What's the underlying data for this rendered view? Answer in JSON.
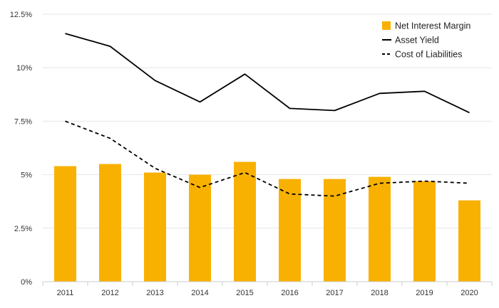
{
  "chart_data": {
    "type": "bar",
    "categories": [
      "2011",
      "2012",
      "2013",
      "2014",
      "2015",
      "2016",
      "2017",
      "2018",
      "2019",
      "2020"
    ],
    "y_tick_labels": [
      "0%",
      "2.5%",
      "5%",
      "7.5%",
      "10%",
      "12.5%"
    ],
    "y_tick_values": [
      0,
      2.5,
      5,
      7.5,
      10,
      12.5
    ],
    "ylim": [
      0,
      12.5
    ],
    "unit": "%",
    "grid": true,
    "legend_position": "top-right",
    "series": [
      {
        "name": "Net Interest Margin",
        "kind": "bar",
        "color": "#f8b100",
        "values": [
          5.4,
          5.5,
          5.1,
          5.0,
          5.6,
          4.8,
          4.8,
          4.9,
          4.7,
          3.8
        ]
      },
      {
        "name": "Asset Yield",
        "kind": "line",
        "style": "solid",
        "color": "#000000",
        "values": [
          11.6,
          11.0,
          9.4,
          8.4,
          9.7,
          8.1,
          8.0,
          8.8,
          8.9,
          7.9
        ]
      },
      {
        "name": "Cost of Liabilities",
        "kind": "line",
        "style": "dashed",
        "color": "#000000",
        "values": [
          7.5,
          6.7,
          5.3,
          4.4,
          5.1,
          4.1,
          4.0,
          4.6,
          4.7,
          4.6
        ]
      }
    ]
  }
}
